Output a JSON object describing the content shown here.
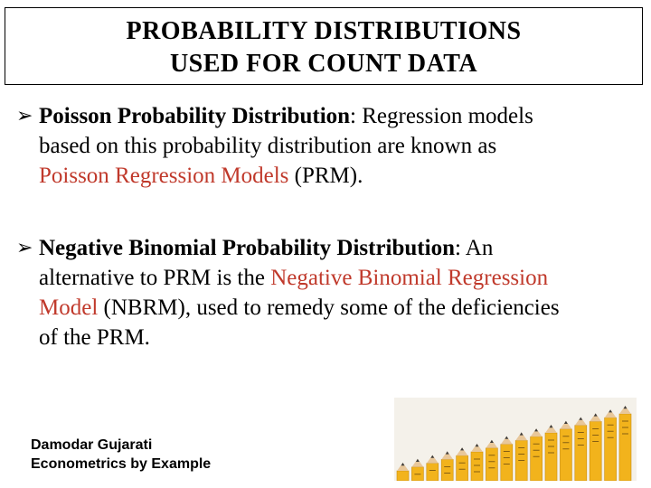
{
  "title": {
    "line1": "PROBABILITY DISTRIBUTIONS",
    "line2": "USED FOR COUNT DATA"
  },
  "bullets": [
    {
      "heading": "Poisson Probability Distribution",
      "rest1": ": Regression models",
      "line2": "based on this probability distribution are known as",
      "red3": "Poisson Regression Models",
      "rest3": " (PRM)."
    },
    {
      "heading": "Negative Binomial Probability Distribution",
      "rest1": ": An",
      "line2a": "alternative to PRM is the ",
      "red2": "Negative Binomial Regression",
      "red3": "Model",
      "rest3": " (NBRM), used to remedy some of the deficiencies",
      "line4": "of the PRM."
    }
  ],
  "credit": {
    "author": "Damodar Gujarati",
    "book": "Econometrics by Example"
  },
  "colors": {
    "highlight": "#c0392b",
    "pencil_body": "#f2b31c",
    "pencil_tip": "#3a3a3a"
  }
}
